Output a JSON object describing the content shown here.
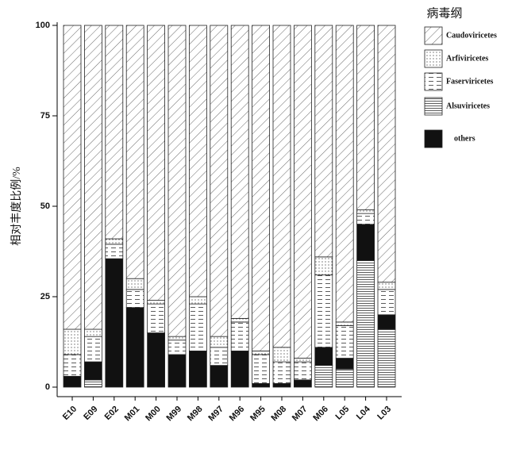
{
  "chart_data": {
    "type": "stacked_bar",
    "y_label": "相对丰度比例/%",
    "legend_title": "病毒纲",
    "categories": [
      "E10",
      "E09",
      "E02",
      "M01",
      "M00",
      "M99",
      "M98",
      "M97",
      "M96",
      "M95",
      "M08",
      "M07",
      "M06",
      "L05",
      "L04",
      "L03"
    ],
    "series": [
      {
        "name": "Caudoviricetes",
        "color": "#000000",
        "pattern": "diagonal",
        "values": [
          84,
          84,
          59,
          70,
          76,
          86,
          75,
          86,
          81,
          90,
          89,
          92,
          64,
          82,
          51,
          71
        ]
      },
      {
        "name": "Arfiviricetes",
        "color": "#000000",
        "pattern": "dots",
        "values": [
          7,
          2,
          1.5,
          3,
          1,
          1,
          2,
          3,
          1,
          1,
          4,
          1,
          5,
          1,
          1,
          2
        ]
      },
      {
        "name": "Faserviricetes",
        "color": "#000000",
        "pattern": "dashes",
        "values": [
          6,
          7,
          4,
          5,
          8,
          4,
          13,
          5,
          8,
          8,
          6,
          5,
          20,
          9,
          3,
          7
        ]
      },
      {
        "name": "Alsuviricetes",
        "color": "#000000",
        "pattern": "hlines",
        "values": [
          0,
          2,
          0,
          0,
          0,
          0,
          0,
          0,
          0,
          0,
          0,
          0,
          6,
          5,
          35,
          16
        ]
      },
      {
        "name": "others",
        "color": "#111111",
        "pattern": "solid",
        "values": [
          3,
          5,
          35.5,
          22,
          15,
          9,
          10,
          6,
          10,
          1,
          1,
          2,
          5,
          3,
          10,
          4
        ]
      }
    ],
    "ylim": [
      0,
      100
    ],
    "yticks": [
      0,
      25,
      50,
      75,
      100
    ],
    "legend": "right"
  }
}
